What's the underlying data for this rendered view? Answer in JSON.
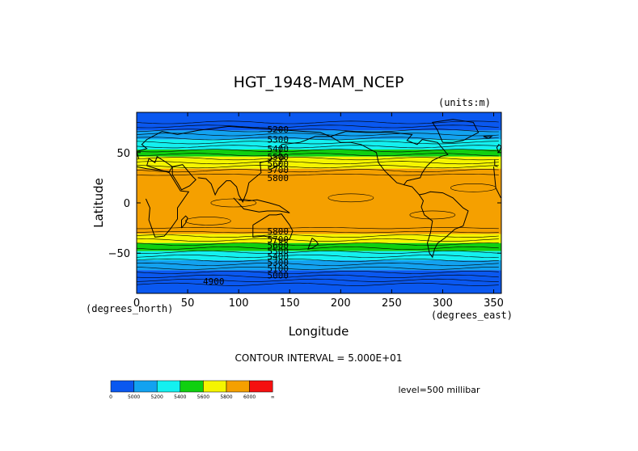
{
  "chart_data": {
    "type": "contour",
    "title": "HGT_1948-MAM_NCEP",
    "units_label": "(units:m)",
    "xlabel": "Longitude",
    "ylabel": "Latitude",
    "x_unit_label": "(degrees_east)",
    "y_unit_label": "(degrees_north)",
    "xlim": [
      0,
      357.5
    ],
    "ylim": [
      -90,
      90
    ],
    "x_ticks": [
      0,
      50,
      100,
      150,
      200,
      250,
      300,
      350
    ],
    "y_ticks": [
      -50,
      0,
      50
    ],
    "x_tick_labels": [
      "0",
      "50",
      "100",
      "150",
      "200",
      "250",
      "300",
      "350"
    ],
    "y_tick_labels": [
      "−50",
      "0",
      "50"
    ],
    "contour_interval_text": "CONTOUR INTERVAL = 5.000E+01",
    "level_text": "level=500 millibar",
    "bands": [
      {
        "lat_from": 90,
        "lat_to": 72,
        "fill": "#0a58f0"
      },
      {
        "lat_from": 72,
        "lat_to": 63,
        "fill": "#12a2f0"
      },
      {
        "lat_from": 63,
        "lat_to": 53,
        "fill": "#14f0f0"
      },
      {
        "lat_from": 53,
        "lat_to": 46,
        "fill": "#10d010"
      },
      {
        "lat_from": 46,
        "lat_to": 34,
        "fill": "#f5f500"
      },
      {
        "lat_from": 34,
        "lat_to": -31,
        "fill": "#f5a000"
      },
      {
        "lat_from": -31,
        "lat_to": -40,
        "fill": "#f5f500"
      },
      {
        "lat_from": -40,
        "lat_to": -48,
        "fill": "#10d010"
      },
      {
        "lat_from": -48,
        "lat_to": -57,
        "fill": "#14f0f0"
      },
      {
        "lat_from": -57,
        "lat_to": -67,
        "fill": "#12a2f0"
      },
      {
        "lat_from": -67,
        "lat_to": -90,
        "fill": "#0a58f0"
      }
    ],
    "contour_labels": [
      {
        "text": "5200",
        "lon": 128,
        "lat": 73
      },
      {
        "text": "5300",
        "lon": 128,
        "lat": 63
      },
      {
        "text": "5400",
        "lon": 128,
        "lat": 54
      },
      {
        "text": "5500",
        "lon": 128,
        "lat": 46
      },
      {
        "text": "5600",
        "lon": 128,
        "lat": 39
      },
      {
        "text": "5700",
        "lon": 128,
        "lat": 33
      },
      {
        "text": "5800",
        "lon": 128,
        "lat": 25
      },
      {
        "text": "5800",
        "lon": 128,
        "lat": -28
      },
      {
        "text": "5700",
        "lon": 128,
        "lat": -36
      },
      {
        "text": "5600",
        "lon": 128,
        "lat": -42
      },
      {
        "text": "5500",
        "lon": 128,
        "lat": -48
      },
      {
        "text": "5400",
        "lon": 128,
        "lat": -53
      },
      {
        "text": "5300",
        "lon": 128,
        "lat": -59
      },
      {
        "text": "5100",
        "lon": 128,
        "lat": -65
      },
      {
        "text": "5000",
        "lon": 128,
        "lat": -72
      },
      {
        "text": "4900",
        "lon": 65,
        "lat": -78
      }
    ],
    "colorbar": {
      "colors": [
        "#0a58f0",
        "#12a2f0",
        "#14f0f0",
        "#10d010",
        "#f5f500",
        "#f5a000",
        "#f51010"
      ],
      "labels": [
        "0",
        "5000",
        "5200",
        "5400",
        "5600",
        "5800",
        "6000",
        "∞"
      ]
    }
  }
}
